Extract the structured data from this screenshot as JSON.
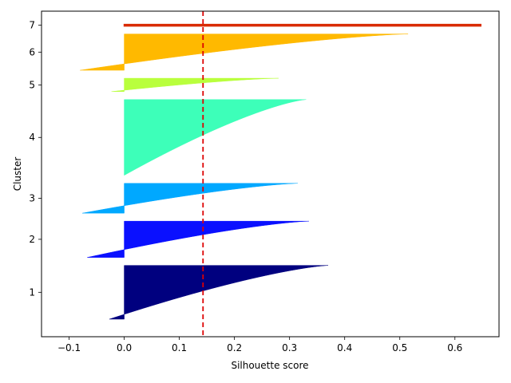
{
  "chart_data": {
    "type": "silhouette",
    "xlabel": "Silhouette score",
    "ylabel": "Cluster",
    "xlim": [
      -0.15,
      0.68
    ],
    "x_ticks": [
      -0.1,
      0.0,
      0.1,
      0.2,
      0.3,
      0.4,
      0.5,
      0.6
    ],
    "x_tick_labels": [
      "−0.1",
      "0.0",
      "0.1",
      "0.2",
      "0.3",
      "0.4",
      "0.5",
      "0.6"
    ],
    "average_silhouette": 0.143,
    "average_line_color": "#dd0000",
    "clusters": [
      {
        "label": "1",
        "color": "#00007f",
        "size": 117,
        "max": 0.37,
        "min": -0.027,
        "neg_count": 4
      },
      {
        "label": "2",
        "color": "#0a10ff",
        "size": 79,
        "max": 0.335,
        "min": -0.067,
        "neg_count": 11
      },
      {
        "label": "3",
        "color": "#00a8ff",
        "size": 65,
        "max": 0.315,
        "min": -0.076,
        "neg_count": 6
      },
      {
        "label": "4",
        "color": "#3dffb9",
        "size": 165,
        "max": 0.33,
        "min": 0.0,
        "neg_count": 0
      },
      {
        "label": "5",
        "color": "#b9ff3d",
        "size": 29,
        "max": 0.28,
        "min": -0.023,
        "neg_count": 2
      },
      {
        "label": "6",
        "color": "#ffb900",
        "size": 79,
        "max": 0.515,
        "min": -0.08,
        "neg_count": 18
      },
      {
        "label": "7",
        "color": "#d92b00",
        "size": 1,
        "max": 0.647,
        "min": 0.647,
        "neg_count": 0
      }
    ]
  }
}
